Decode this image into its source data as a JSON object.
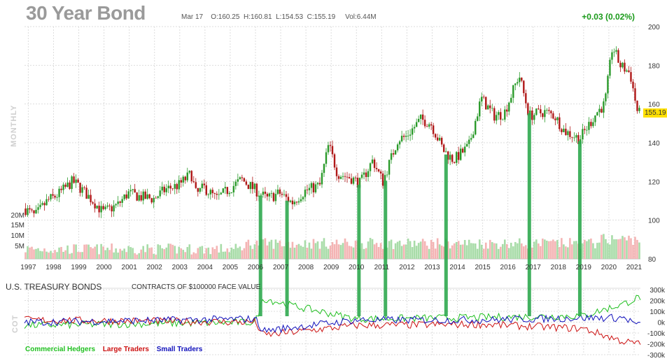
{
  "header": {
    "title": "30 Year Bond",
    "date": "Mar 17",
    "open": "O:160.25",
    "high": "H:160.81",
    "low": "L:154.53",
    "close": "C:155.19",
    "volume": "Vol:6.44M",
    "change": "+0.03 (0.02%)",
    "last_price": "155.19"
  },
  "side_labels": {
    "price": "MONTHLY",
    "cot": "COT"
  },
  "cot": {
    "title": "U.S. TREASURY BONDS",
    "subtitle": "CONTRACTS OF $100000 FACE VALUE",
    "legend": [
      {
        "name": "Commercial Hedgers",
        "color": "#1fbf1f"
      },
      {
        "name": "Large Traders",
        "color": "#cc1111"
      },
      {
        "name": "Small Traders",
        "color": "#1111bb"
      }
    ]
  },
  "colors": {
    "up": "#2a9a2a",
    "down": "#b01818",
    "vol_up": "#a8dca8",
    "vol_down": "#f4b4b4",
    "marker": "#2fa84f",
    "grid": "#dddddd"
  },
  "chart_data": {
    "type": "candlestick",
    "timeframe": "monthly",
    "x_ticks": [
      "1997",
      "1998",
      "1999",
      "2000",
      "2001",
      "2002",
      "2003",
      "2004",
      "2005",
      "2006",
      "2007",
      "2008",
      "2009",
      "2010",
      "2011",
      "2012",
      "2013",
      "2014",
      "2015",
      "2016",
      "2017",
      "2018",
      "2019",
      "2020",
      "2021"
    ],
    "price_ticks": [
      80,
      100,
      120,
      140,
      160,
      180,
      200
    ],
    "ylim": [
      80,
      200
    ],
    "volume_ticks": [
      "5M",
      "10M",
      "15M",
      "20M"
    ],
    "cot_ticks": [
      "300k",
      "200k",
      "100k",
      "0k",
      "-100k",
      "-200k",
      "-300k"
    ],
    "cot_ylim": [
      -300000,
      300000
    ],
    "price_path": [
      [
        1996.9,
        106
      ],
      [
        1997.3,
        102
      ],
      [
        1997.8,
        110
      ],
      [
        1998.2,
        113
      ],
      [
        1998.8,
        120
      ],
      [
        1999.0,
        118
      ],
      [
        1999.6,
        110
      ],
      [
        2000.0,
        104
      ],
      [
        2000.6,
        108
      ],
      [
        2001.0,
        114
      ],
      [
        2001.5,
        112
      ],
      [
        2002.0,
        111
      ],
      [
        2002.5,
        116
      ],
      [
        2003.0,
        118
      ],
      [
        2003.5,
        124
      ],
      [
        2003.7,
        113
      ],
      [
        2004.0,
        117
      ],
      [
        2004.5,
        111
      ],
      [
        2005.0,
        116
      ],
      [
        2005.5,
        121
      ],
      [
        2006.0,
        116
      ],
      [
        2006.5,
        111
      ],
      [
        2007.0,
        114
      ],
      [
        2007.5,
        109
      ],
      [
        2008.0,
        115
      ],
      [
        2008.6,
        118
      ],
      [
        2008.95,
        139
      ],
      [
        2009.3,
        124
      ],
      [
        2009.8,
        122
      ],
      [
        2010.2,
        119
      ],
      [
        2010.7,
        131
      ],
      [
        2010.9,
        125
      ],
      [
        2011.1,
        120
      ],
      [
        2011.7,
        142
      ],
      [
        2012.0,
        143
      ],
      [
        2012.6,
        152
      ],
      [
        2013.0,
        150
      ],
      [
        2013.5,
        136
      ],
      [
        2013.9,
        131
      ],
      [
        2014.5,
        138
      ],
      [
        2015.0,
        163
      ],
      [
        2015.5,
        154
      ],
      [
        2015.9,
        155
      ],
      [
        2016.5,
        175
      ],
      [
        2016.9,
        154
      ],
      [
        2017.5,
        156
      ],
      [
        2017.9,
        154
      ],
      [
        2018.3,
        146
      ],
      [
        2018.9,
        142
      ],
      [
        2019.6,
        156
      ],
      [
        2019.9,
        160
      ],
      [
        2020.2,
        190
      ],
      [
        2020.5,
        180
      ],
      [
        2020.9,
        176
      ],
      [
        2021.2,
        155.19
      ]
    ],
    "cot_markers": [
      "2006",
      "2007",
      "2010",
      "2011",
      "2013",
      "2016",
      "2018"
    ],
    "series": [
      {
        "name": "Commercial Hedgers",
        "trend": [
          [
            1997,
            -30000
          ],
          [
            2006,
            0
          ],
          [
            2006.3,
            220000
          ],
          [
            2007.5,
            150000
          ],
          [
            2010,
            30000
          ],
          [
            2014,
            40000
          ],
          [
            2019,
            60000
          ],
          [
            2020.6,
            170000
          ],
          [
            2021.2,
            230000
          ]
        ]
      },
      {
        "name": "Large Traders",
        "trend": [
          [
            1997,
            20000
          ],
          [
            2006,
            0
          ],
          [
            2006.3,
            -120000
          ],
          [
            2010,
            -30000
          ],
          [
            2015,
            -20000
          ],
          [
            2019,
            -60000
          ],
          [
            2020.6,
            -180000
          ],
          [
            2021.2,
            -200000
          ]
        ]
      },
      {
        "name": "Small Traders",
        "trend": [
          [
            1997,
            0
          ],
          [
            2006,
            30000
          ],
          [
            2006.3,
            -80000
          ],
          [
            2010,
            20000
          ],
          [
            2015,
            20000
          ],
          [
            2019,
            40000
          ],
          [
            2020.6,
            40000
          ],
          [
            2021.2,
            -30000
          ]
        ]
      }
    ]
  }
}
